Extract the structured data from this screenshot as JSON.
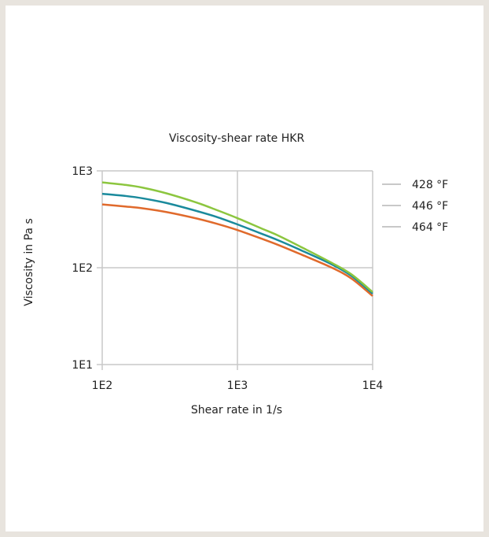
{
  "chart_data": {
    "type": "line",
    "title": "Viscosity-shear rate HKR",
    "xlabel": "Shear rate in 1/s",
    "ylabel": "Viscosity in Pa s",
    "x_scale": "log",
    "y_scale": "log",
    "xlim": [
      100,
      10000
    ],
    "ylim": [
      10,
      1000
    ],
    "x_ticks": [
      100,
      1000,
      10000
    ],
    "y_ticks": [
      10,
      100,
      1000
    ],
    "x_tick_labels": [
      "1E2",
      "1E3",
      "1E4"
    ],
    "y_tick_labels": [
      "1E1",
      "1E2",
      "1E3"
    ],
    "grid": true,
    "legend_position": "right",
    "series": [
      {
        "name": "428 °F",
        "color": "#8cc63f",
        "x": [
          100,
          150,
          200,
          300,
          500,
          700,
          1000,
          1500,
          2000,
          3000,
          5000,
          7000,
          10000
        ],
        "y": [
          760,
          715,
          670,
          585,
          470,
          395,
          325,
          255,
          215,
          162,
          112,
          85,
          56
        ]
      },
      {
        "name": "446 °F",
        "color": "#1a8a9c",
        "x": [
          100,
          150,
          200,
          300,
          500,
          700,
          1000,
          1500,
          2000,
          3000,
          5000,
          7000,
          10000
        ],
        "y": [
          580,
          550,
          520,
          465,
          385,
          335,
          280,
          225,
          192,
          150,
          108,
          82,
          54
        ]
      },
      {
        "name": "464 °F",
        "color": "#e06a2c",
        "x": [
          100,
          150,
          200,
          300,
          500,
          700,
          1000,
          1500,
          2000,
          3000,
          5000,
          7000,
          10000
        ],
        "y": [
          450,
          428,
          410,
          375,
          322,
          285,
          245,
          200,
          172,
          136,
          100,
          77,
          51
        ]
      }
    ]
  }
}
